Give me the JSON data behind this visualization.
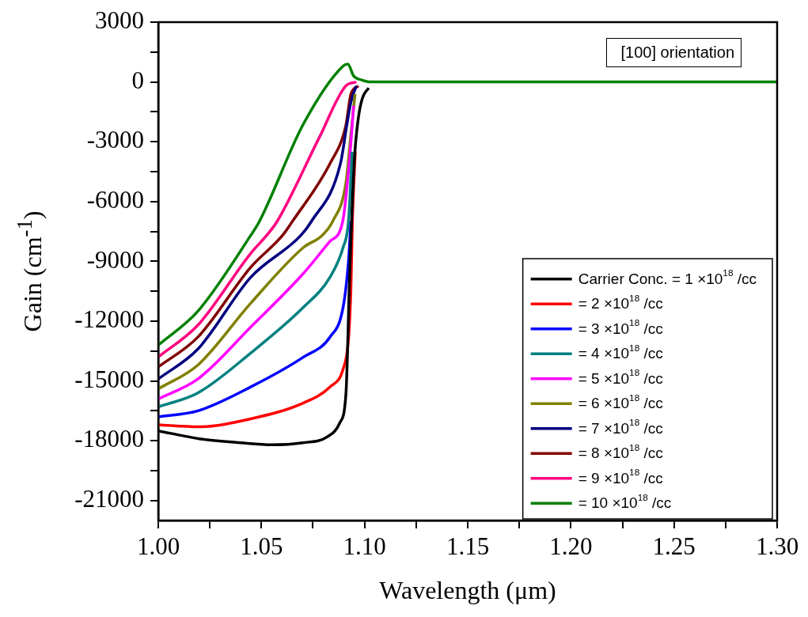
{
  "chart_data": {
    "type": "line",
    "xlabel": "Wavelength (μm)",
    "ylabel": "Gain (cm$^{-1}$)",
    "xlim": [
      1.0,
      1.3
    ],
    "ylim": [
      -22000,
      3000
    ],
    "xticks": [
      {
        "value": 1,
        "label": "1.00"
      },
      {
        "value": 1.025,
        "label": null
      },
      {
        "value": 1.05,
        "label": "1.05"
      },
      {
        "value": 1.075,
        "label": null
      },
      {
        "value": 1.1,
        "label": "1.10"
      },
      {
        "value": 1.125,
        "label": null
      },
      {
        "value": 1.15,
        "label": "1.15"
      },
      {
        "value": 1.175,
        "label": null
      },
      {
        "value": 1.2,
        "label": "1.20"
      },
      {
        "value": 1.225,
        "label": null
      },
      {
        "value": 1.25,
        "label": "1.25"
      },
      {
        "value": 1.275,
        "label": null
      },
      {
        "value": 1.3,
        "label": "1.30"
      }
    ],
    "yticks": [
      3000,
      {
        "value": 1500,
        "label": null
      },
      0,
      {
        "value": -1500,
        "label": null
      },
      -3000,
      {
        "value": -4500,
        "label": null
      },
      -6000,
      {
        "value": -7500,
        "label": null
      },
      -9000,
      {
        "value": -10500,
        "label": null
      },
      -12000,
      {
        "value": -13500,
        "label": null
      },
      -15000,
      {
        "value": -16500,
        "label": null
      },
      -18000,
      {
        "value": -19500,
        "label": null
      },
      -21000
    ],
    "legend": "bottom right",
    "annotations": [
      "[100] orientation"
    ],
    "series": [
      {
        "name": "Carrier Conc. = 1 ×10$^{18}$ /cc",
        "color": "#000000",
        "x": [
          1.0,
          1.02,
          1.04,
          1.055,
          1.07,
          1.082,
          1.088,
          1.091,
          1.0928,
          1.095,
          1.097,
          1.099,
          1.102
        ],
        "values": [
          -17500,
          -17900,
          -18100,
          -18200,
          -18100,
          -17800,
          -17100,
          -15600,
          -9600,
          -4000,
          -1800,
          -800,
          -300
        ]
      },
      {
        "name": "= 2 ×10$^{18}$ /cc",
        "color": "#ff0000",
        "x": [
          1.0,
          1.0192,
          1.0448,
          1.0704,
          1.0832,
          1.0896,
          1.0922,
          1.0934,
          1.0941,
          1.0955
        ],
        "values": [
          -17200,
          -17300,
          -16900,
          -16100,
          -15300,
          -14400,
          -12900,
          -10300,
          -7000,
          -3500
        ]
      },
      {
        "name": "= 3 ×10$^{18}$ /cc",
        "color": "#0000ff",
        "x": [
          1.0,
          1.0192,
          1.0448,
          1.0704,
          1.0832,
          1.0896,
          1.0922,
          1.0934
        ],
        "values": [
          -16800,
          -16500,
          -15300,
          -13800,
          -12800,
          -11300,
          -9000,
          -7000
        ]
      },
      {
        "name": "= 4 ×10$^{18}$ /cc",
        "color": "#008080",
        "x": [
          1.0,
          1.0192,
          1.0448,
          1.0704,
          1.0832,
          1.0896,
          1.0922,
          1.094
        ],
        "values": [
          -16300,
          -15600,
          -13600,
          -11300,
          -9800,
          -8300,
          -7000,
          -3500
        ]
      },
      {
        "name": "= 5 ×10$^{18}$ /cc",
        "color": "#ff00ff",
        "x": [
          1.0,
          1.0192,
          1.0448,
          1.0704,
          1.0832,
          1.0894,
          1.0928,
          1.0947
        ],
        "values": [
          -15900,
          -14900,
          -12300,
          -9600,
          -8000,
          -7000,
          -3800,
          -1200
        ]
      },
      {
        "name": "= 6 ×10$^{18}$ /cc",
        "color": "#808000",
        "x": [
          1.0,
          1.0192,
          1.0448,
          1.0704,
          1.0794,
          1.0845,
          1.0909,
          1.0934,
          1.0954
        ],
        "values": [
          -15400,
          -14200,
          -11100,
          -8300,
          -7700,
          -7000,
          -5100,
          -2600,
          -600
        ]
      },
      {
        "name": "= 7 ×10$^{18}$ /cc",
        "color": "#000080",
        "x": [
          1.0,
          1.0192,
          1.0448,
          1.0691,
          1.0742,
          1.0883,
          1.0915,
          1.0934,
          1.096
        ],
        "values": [
          -14900,
          -13400,
          -9800,
          -7700,
          -7000,
          -4100,
          -2100,
          -1000,
          -200
        ]
      },
      {
        "name": "= 8 ×10$^{18}$ /cc",
        "color": "#800000",
        "x": [
          1.0,
          1.0192,
          1.0448,
          1.0602,
          1.065,
          1.0832,
          1.0909,
          1.0934,
          1.097
        ],
        "values": [
          -14300,
          -12800,
          -9300,
          -7700,
          -7000,
          -4100,
          -2200,
          -600,
          -200
        ]
      },
      {
        "name": "= 9 ×10$^{18}$ /cc",
        "color": "#ff0080",
        "x": [
          1.0,
          1.0192,
          1.0448,
          1.0525,
          1.0576,
          1.078,
          1.0909,
          1.096
        ],
        "values": [
          -13800,
          -12200,
          -8600,
          -7700,
          -7000,
          -2800,
          -200,
          0
        ]
      },
      {
        "name": "= 10 ×10$^{18}$ /cc",
        "color": "#008000",
        "x": [
          1.0,
          1.0192,
          1.0448,
          1.049,
          1.0704,
          1.0896,
          1.0919,
          1.0947,
          1.0986,
          1.103,
          1.11,
          1.12,
          1.3
        ],
        "values": [
          -13200,
          -11500,
          -7700,
          -7000,
          -2100,
          800,
          900,
          300,
          100,
          0,
          0,
          0,
          0
        ]
      }
    ]
  }
}
